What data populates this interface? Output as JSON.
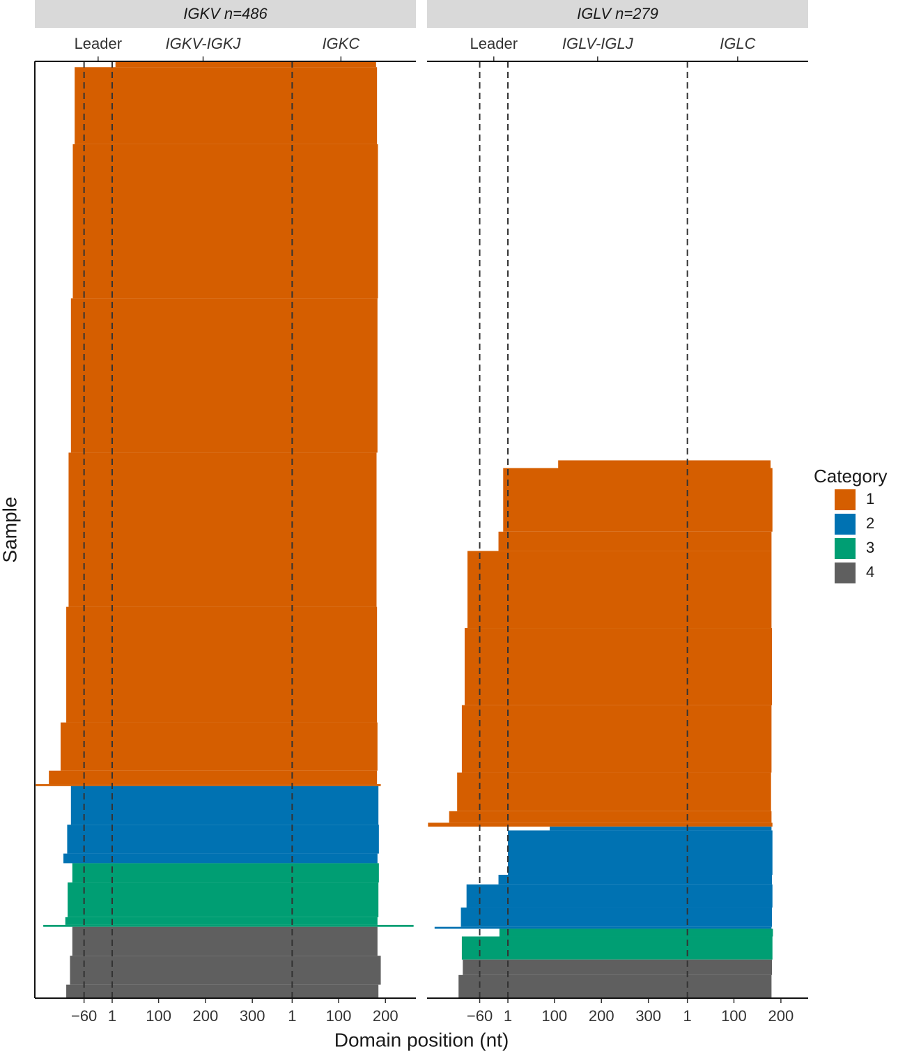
{
  "chart_data": {
    "type": "range-bar",
    "x_label": "Domain position (nt)",
    "y_label": "Sample",
    "legend": {
      "title": "Category",
      "items": [
        {
          "name": "1",
          "color": "#d55e00"
        },
        {
          "name": "2",
          "color": "#0072b2"
        },
        {
          "name": "3",
          "color": "#009e73"
        },
        {
          "name": "4",
          "color": "#5f5f5f"
        }
      ]
    },
    "facets": [
      {
        "title": "IGKV n=486",
        "domains": [
          {
            "name": "Leader",
            "italic": false,
            "xlim": [
              -165,
              0
            ],
            "xticks": [
              {
                "value": -60,
                "label": "−60"
              }
            ],
            "label_at": -30,
            "dashed": -60
          },
          {
            "name": "IGKV-IGKJ",
            "italic": true,
            "xlim": [
              1,
              385
            ],
            "xticks": [
              1,
              100,
              200,
              300
            ],
            "label_at": 195,
            "dashed": 1
          },
          {
            "name": "IGKC",
            "italic": true,
            "xlim": [
              1,
              265
            ],
            "xticks": [
              1,
              100,
              200
            ],
            "label_at": 105,
            "dashed": 1
          }
        ],
        "bands": [
          {
            "category": 1,
            "rows": 3,
            "start_domain": 1,
            "start": 8,
            "end": 180
          },
          {
            "category": 1,
            "rows": 40,
            "start_domain": 0,
            "start": -80,
            "end": 182
          },
          {
            "category": 1,
            "rows": 80,
            "start_domain": 0,
            "start": -84,
            "end": 184
          },
          {
            "category": 1,
            "rows": 80,
            "start_domain": 0,
            "start": -88,
            "end": 183
          },
          {
            "category": 1,
            "rows": 80,
            "start_domain": 0,
            "start": -93,
            "end": 181
          },
          {
            "category": 1,
            "rows": 60,
            "start_domain": 0,
            "start": -98,
            "end": 182
          },
          {
            "category": 1,
            "rows": 25,
            "start_domain": 0,
            "start": -110,
            "end": 183
          },
          {
            "category": 1,
            "rows": 7,
            "start_domain": 0,
            "start": -135,
            "end": 182
          },
          {
            "category": 1,
            "rows": 1,
            "start_domain": 0,
            "start": -163,
            "end": 190
          },
          {
            "category": 2,
            "rows": 20,
            "start_domain": 0,
            "start": -88,
            "end": 185
          },
          {
            "category": 2,
            "rows": 15,
            "start_domain": 0,
            "start": -96,
            "end": 186
          },
          {
            "category": 2,
            "rows": 5,
            "start_domain": 0,
            "start": -104,
            "end": 183
          },
          {
            "category": 3,
            "rows": 10,
            "start_domain": 0,
            "start": -85,
            "end": 186
          },
          {
            "category": 3,
            "rows": 18,
            "start_domain": 0,
            "start": -95,
            "end": 185
          },
          {
            "category": 3,
            "rows": 4,
            "start_domain": 0,
            "start": -100,
            "end": 183
          },
          {
            "category": 3,
            "rows": 1,
            "start_domain": 0,
            "start": -147,
            "end": 260
          },
          {
            "category": 4,
            "rows": 15,
            "start_domain": 0,
            "start": -85,
            "end": 183
          },
          {
            "category": 4,
            "rows": 15,
            "start_domain": 0,
            "start": -90,
            "end": 190
          },
          {
            "category": 4,
            "rows": 7,
            "start_domain": 0,
            "start": -98,
            "end": 185
          }
        ]
      },
      {
        "title": "IGLV n=279",
        "domains": [
          {
            "name": "Leader",
            "italic": false,
            "xlim": [
              -172,
              0
            ],
            "xticks": [
              {
                "value": -60,
                "label": "−60"
              }
            ],
            "label_at": -30,
            "dashed": -60
          },
          {
            "name": "IGLV-IGLJ",
            "italic": true,
            "xlim": [
              1,
              383
            ],
            "xticks": [
              1,
              100,
              200,
              300
            ],
            "label_at": 192,
            "dashed": 1
          },
          {
            "name": "IGLC",
            "italic": true,
            "xlim": [
              1,
              258
            ],
            "xticks": [
              1,
              100,
              200
            ],
            "label_at": 108,
            "dashed": 1
          }
        ],
        "bands": [
          {
            "category": 1,
            "rows": 4,
            "start_domain": 1,
            "start": 108,
            "end": 178
          },
          {
            "category": 1,
            "rows": 33,
            "start_domain": 0,
            "start": -10,
            "end": 182
          },
          {
            "category": 1,
            "rows": 10,
            "start_domain": 0,
            "start": -20,
            "end": 180
          },
          {
            "category": 1,
            "rows": 40,
            "start_domain": 0,
            "start": -86,
            "end": 180
          },
          {
            "category": 1,
            "rows": 40,
            "start_domain": 0,
            "start": -92,
            "end": 181
          },
          {
            "category": 1,
            "rows": 35,
            "start_domain": 0,
            "start": -98,
            "end": 180
          },
          {
            "category": 1,
            "rows": 20,
            "start_domain": 0,
            "start": -108,
            "end": 179
          },
          {
            "category": 1,
            "rows": 6,
            "start_domain": 0,
            "start": -125,
            "end": 180
          },
          {
            "category": 1,
            "rows": 2,
            "start_domain": 0,
            "start": -170,
            "end": 182
          },
          {
            "category": 2,
            "rows": 2,
            "start_domain": 1,
            "start": 90,
            "end": 180
          },
          {
            "category": 2,
            "rows": 23,
            "start_domain": 1,
            "start": 1,
            "end": 182
          },
          {
            "category": 2,
            "rows": 5,
            "start_domain": 0,
            "start": -20,
            "end": 181
          },
          {
            "category": 2,
            "rows": 12,
            "start_domain": 0,
            "start": -88,
            "end": 182
          },
          {
            "category": 2,
            "rows": 10,
            "start_domain": 0,
            "start": -100,
            "end": 181
          },
          {
            "category": 2,
            "rows": 1,
            "start_domain": 0,
            "start": -156,
            "end": 180
          },
          {
            "category": 3,
            "rows": 4,
            "start_domain": 0,
            "start": -18,
            "end": 183
          },
          {
            "category": 3,
            "rows": 12,
            "start_domain": 0,
            "start": -98,
            "end": 182
          },
          {
            "category": 4,
            "rows": 8,
            "start_domain": 0,
            "start": -96,
            "end": 181
          },
          {
            "category": 4,
            "rows": 12,
            "start_domain": 0,
            "start": -105,
            "end": 180
          }
        ]
      }
    ]
  }
}
